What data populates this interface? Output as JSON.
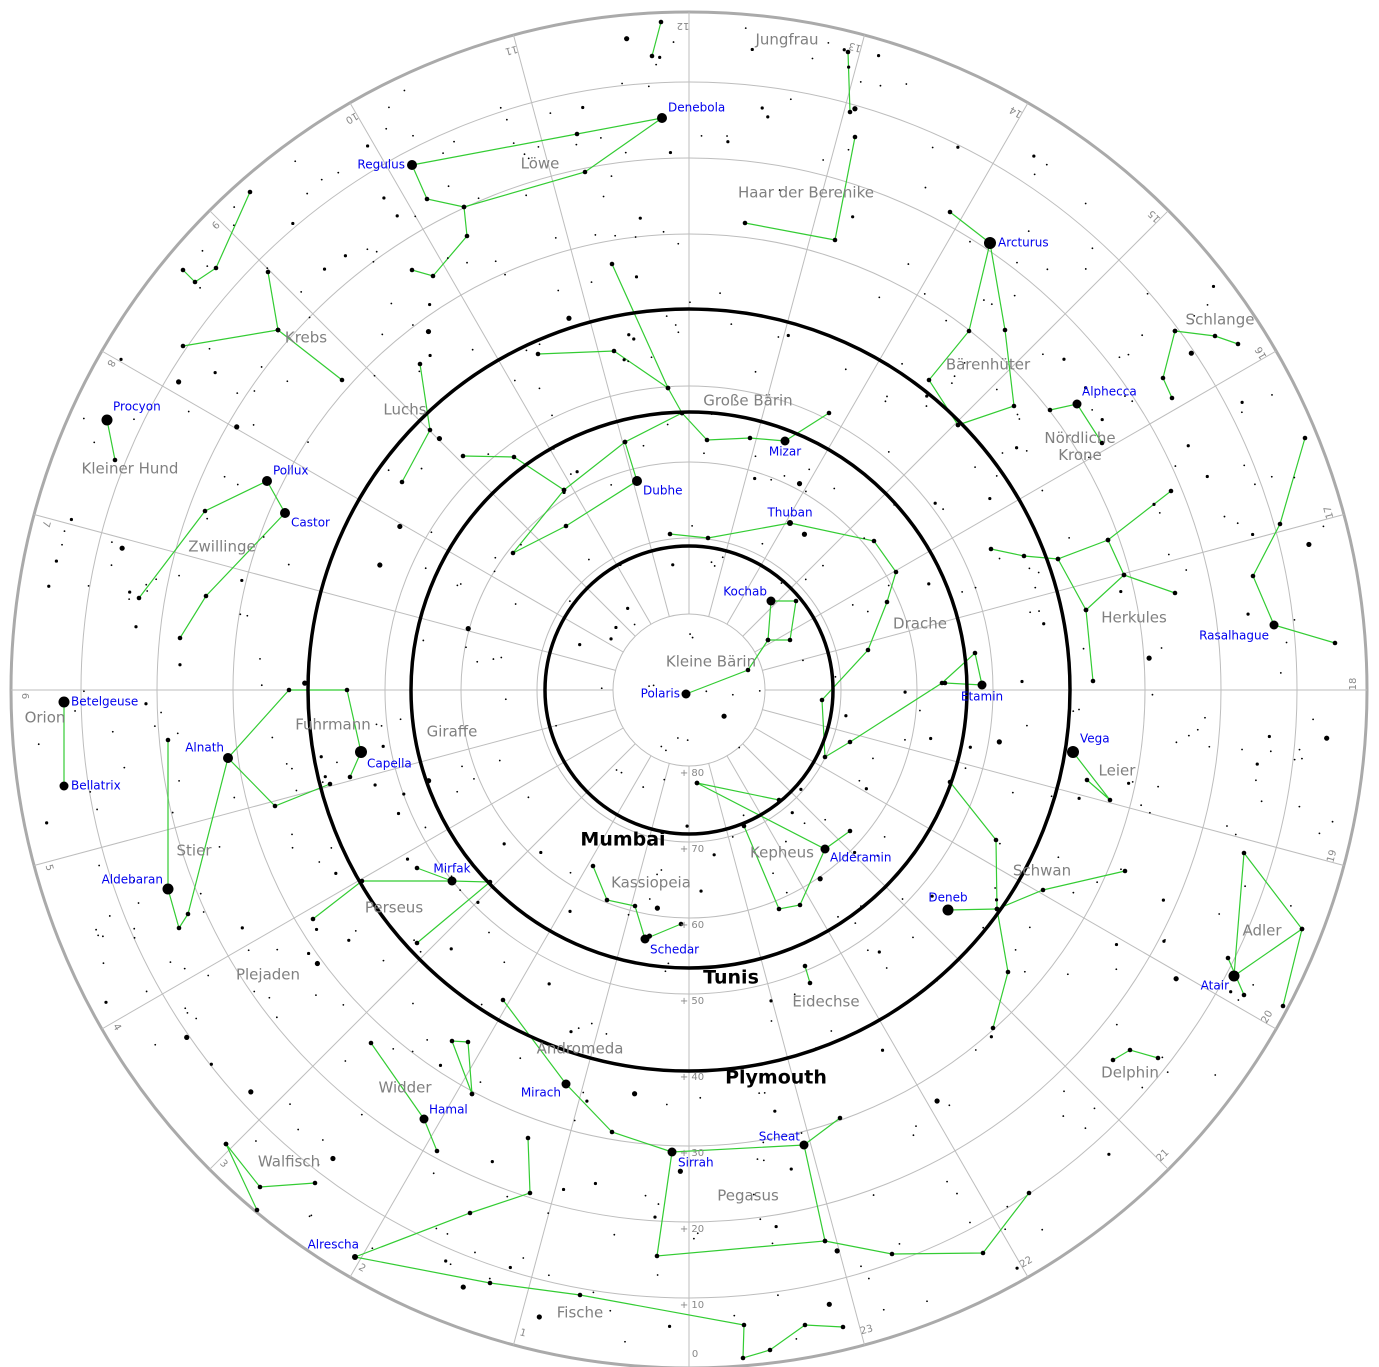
{
  "constellations": [
    "Jungfrau",
    "Löwe",
    "Haar der Berenike",
    "Krebs",
    "Schlange",
    "Bärenhüter",
    "Luchs",
    "Große Bärin",
    "Nördliche Krone",
    "Kleiner Hund",
    "Zwillinge",
    "Drache",
    "Herkules",
    "Kleine Bärin",
    "Orion",
    "Fuhrmann",
    "Giraffe",
    "Leier",
    "Stier",
    "Kepheus",
    "Schwan",
    "Kassiopeia",
    "Perseus",
    "Adler",
    "Plejaden",
    "Eidechse",
    "Andromeda",
    "Delphin",
    "Widder",
    "Walfisch",
    "Pegasus",
    "Fische"
  ],
  "stars": [
    "Denebola",
    "Regulus",
    "Arcturus",
    "Alphecca",
    "Procyon",
    "Mizar",
    "Pollux",
    "Dubhe",
    "Thuban",
    "Castor",
    "Kochab",
    "Rasalhague",
    "Polaris",
    "Betelgeuse",
    "Etamin",
    "Alnath",
    "Vega",
    "Capella",
    "Bellatrix",
    "Alderamin",
    "Mirfak",
    "Aldebaran",
    "Deneb",
    "Schedar",
    "Atair",
    "Mirach",
    "Hamal",
    "Scheat",
    "Sirrah",
    "Alrescha"
  ],
  "cities": [
    "Mumbai",
    "Tunis",
    "Plymouth"
  ],
  "ra_hours": [
    0,
    1,
    2,
    3,
    4,
    5,
    6,
    7,
    8,
    9,
    10,
    11,
    12,
    13,
    14,
    15,
    16,
    17,
    18,
    19,
    20,
    21,
    22,
    23
  ],
  "dec_labels": [
    "+ 80",
    "+ 70",
    "+ 60",
    "+ 50",
    "+ 40",
    "+ 30",
    "+ 20",
    "+ 10"
  ]
}
